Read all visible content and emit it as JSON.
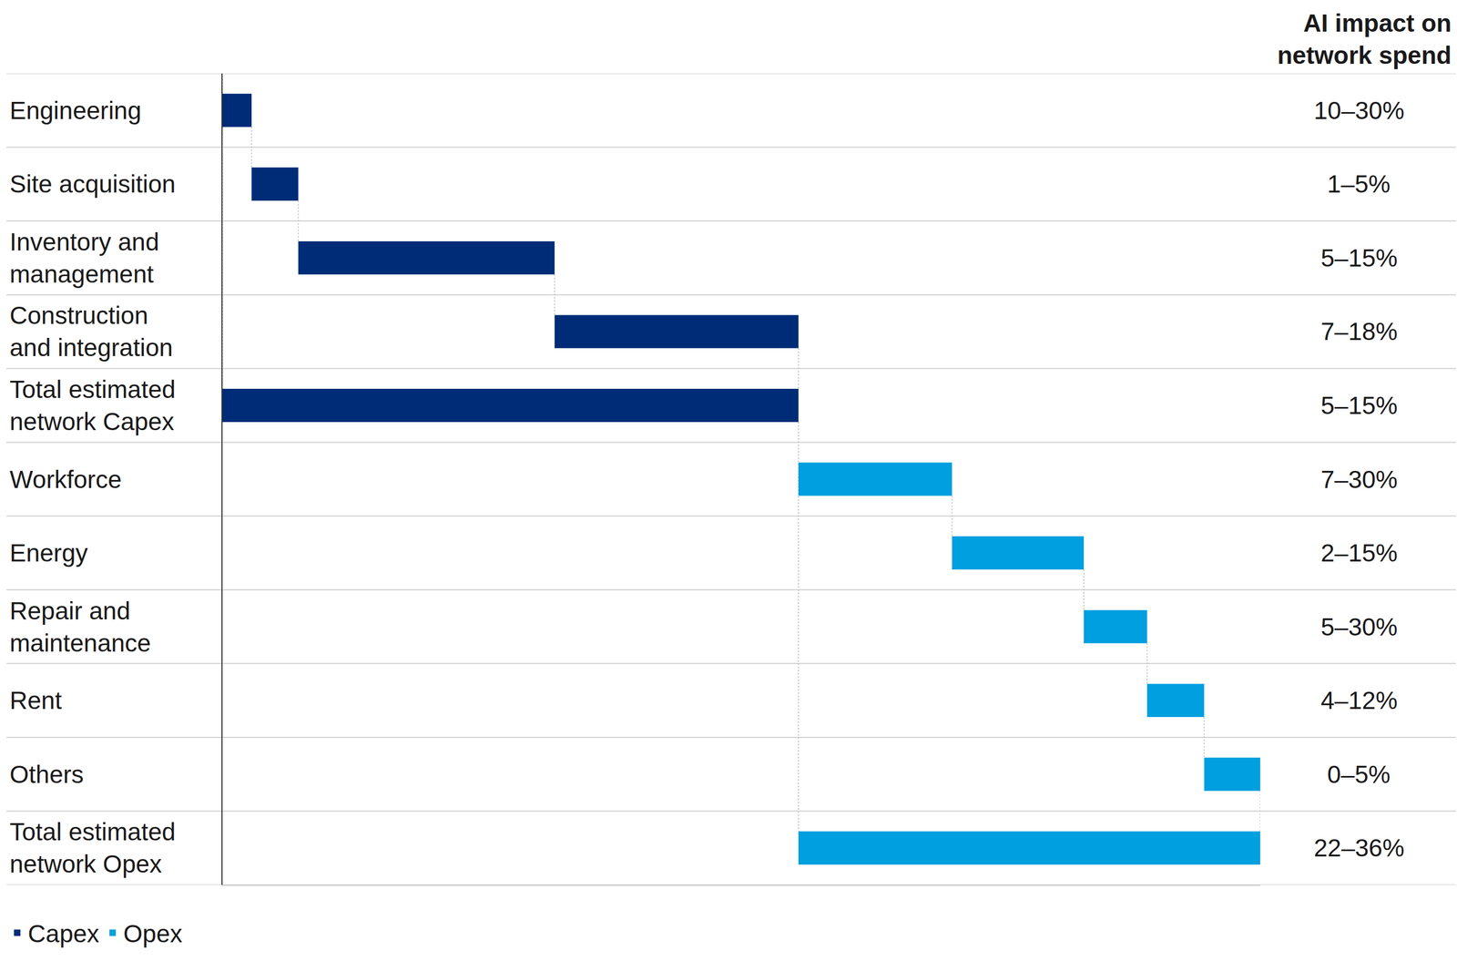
{
  "chart_data": {
    "type": "waterfall",
    "orientation": "horizontal",
    "column_title": "AI impact on network spend",
    "xlim": [
      0,
      100
    ],
    "legend": "bottom left",
    "series": [
      {
        "name": "Capex",
        "color": "#002c77",
        "categories": [
          "Engineering",
          "Site acquisition",
          "Inventory and management",
          "Construction and integration"
        ],
        "values": [
          2.8,
          4.5,
          24.7,
          23.5
        ],
        "impacts": [
          "10–30%",
          "1–5%",
          "5–15%",
          "7–18%"
        ],
        "total": {
          "category": "Total estimated network Capex",
          "value": 55.5,
          "impact": "5–15%"
        }
      },
      {
        "name": "Opex",
        "color": "#009fdf",
        "categories": [
          "Workforce",
          "Energy",
          "Repair and maintenance",
          "Rent",
          "Others"
        ],
        "values": [
          14.8,
          12.7,
          6.1,
          5.5,
          5.4
        ],
        "impacts": [
          "7–30%",
          "2–15%",
          "5–30%",
          "4–12%",
          "0–5%"
        ],
        "total": {
          "category": "Total estimated network Opex",
          "value": 44.5,
          "impact": "22–36%"
        }
      }
    ]
  }
}
